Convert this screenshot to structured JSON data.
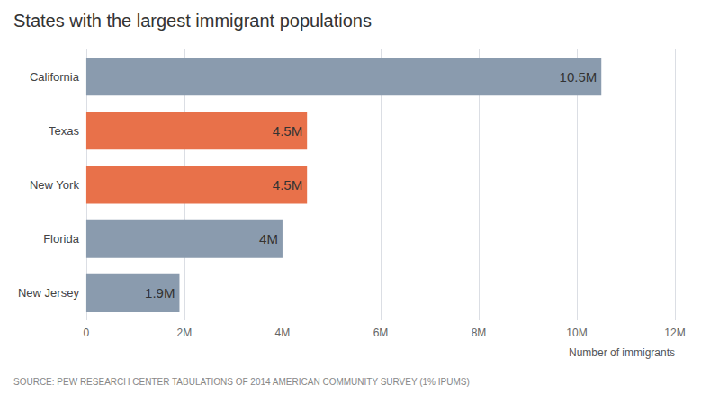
{
  "chart_data": {
    "type": "bar",
    "orientation": "horizontal",
    "title": "States with the largest immigrant populations",
    "categories": [
      "California",
      "Texas",
      "New York",
      "Florida",
      "New Jersey"
    ],
    "values": [
      10500000,
      4500000,
      4500000,
      4000000,
      1900000
    ],
    "value_labels": [
      "10.5M",
      "4.5M",
      "4.5M",
      "4M",
      "1.9M"
    ],
    "data_labels": true,
    "colors": [
      "#8a9bae",
      "#e8714a",
      "#e8714a",
      "#8a9bae",
      "#8a9bae"
    ],
    "xlabel": "Number of immigrants",
    "xlim": [
      0,
      12000000
    ],
    "xticks": [
      0,
      {
        "value": 2000000,
        "label": "2M"
      },
      {
        "value": 4000000,
        "label": "4M"
      },
      {
        "value": 6000000,
        "label": "6M"
      },
      {
        "value": 8000000,
        "label": "8M"
      },
      {
        "value": 10000000,
        "label": "10M"
      },
      {
        "value": 12000000,
        "label": "12M"
      }
    ],
    "grid": true,
    "annotations": [
      "SOURCE: PEW RESEARCH CENTER TABULATIONS OF 2014 AMERICAN COMMUNITY SURVEY (1% IPUMS)"
    ]
  }
}
